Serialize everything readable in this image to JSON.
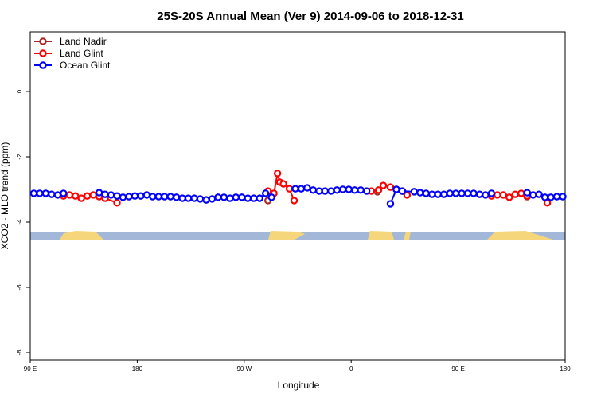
{
  "chart_data": {
    "type": "line",
    "title": "25S-20S Annual Mean (Ver 9)   2014-09-06 to 2018-12-31",
    "x_label": "Longitude",
    "y_label": "XCO2 - MLO trend (ppm)",
    "xlim": [
      90,
      540
    ],
    "ylim": [
      -8.22,
      1.83
    ],
    "xticks": [
      {
        "value": 90,
        "label": "90 E"
      },
      180,
      {
        "value": 270,
        "label": "90 W"
      },
      {
        "value": 360,
        "label": "0"
      },
      {
        "value": 450,
        "label": "90 E"
      },
      {
        "value": 540,
        "label": "180"
      }
    ],
    "yticks": [
      0,
      -2,
      -4,
      -6,
      -8
    ],
    "legend": "top-left",
    "series": [
      {
        "name": "Land Nadir",
        "color": "#a52a2a",
        "x": [
          117,
          290,
          382,
          508
        ],
        "values": [
          -3.17,
          -3.34,
          -3.07,
          -3.22
        ]
      },
      {
        "name": "Land Glint",
        "color": "#ff0000",
        "x": [
          118,
          123,
          128,
          133,
          138,
          143,
          148,
          153,
          163,
          290,
          295,
          298,
          300,
          303,
          308,
          312,
          377,
          383,
          387,
          393,
          398,
          403,
          407,
          478,
          483,
          488,
          493,
          498,
          503,
          508,
          525
        ],
        "values": [
          -3.2,
          -3.17,
          -3.2,
          -3.27,
          -3.2,
          -3.17,
          -3.22,
          -3.27,
          -3.41,
          -3.05,
          -3.12,
          -2.51,
          -2.78,
          -2.83,
          -2.98,
          -3.34,
          -3.05,
          -3.02,
          -2.88,
          -2.93,
          -3.0,
          -3.05,
          -3.17,
          -3.2,
          -3.17,
          -3.17,
          -3.24,
          -3.15,
          -3.12,
          -3.2,
          -3.41
        ]
      },
      {
        "name": "Ocean Glint",
        "color": "#0000ff",
        "x": [
          93,
          98,
          103,
          108,
          113,
          118,
          148,
          153,
          158,
          163,
          168,
          173,
          178,
          183,
          188,
          193,
          198,
          203,
          208,
          213,
          218,
          223,
          228,
          233,
          238,
          243,
          248,
          253,
          258,
          263,
          268,
          273,
          278,
          283,
          288,
          293,
          313,
          318,
          323,
          328,
          333,
          338,
          343,
          348,
          353,
          358,
          363,
          368,
          373,
          393,
          398,
          403,
          413,
          418,
          423,
          428,
          433,
          438,
          443,
          448,
          453,
          458,
          463,
          468,
          473,
          478,
          508,
          513,
          518,
          523,
          528,
          533,
          538
        ],
        "values": [
          -3.12,
          -3.12,
          -3.12,
          -3.15,
          -3.17,
          -3.12,
          -3.1,
          -3.15,
          -3.17,
          -3.2,
          -3.24,
          -3.22,
          -3.2,
          -3.2,
          -3.17,
          -3.22,
          -3.22,
          -3.22,
          -3.22,
          -3.24,
          -3.27,
          -3.27,
          -3.27,
          -3.29,
          -3.32,
          -3.29,
          -3.24,
          -3.24,
          -3.27,
          -3.24,
          -3.24,
          -3.27,
          -3.27,
          -3.27,
          -3.12,
          -3.24,
          -2.98,
          -2.98,
          -2.95,
          -3.02,
          -3.05,
          -3.05,
          -3.05,
          -3.02,
          -3.0,
          -3.0,
          -3.02,
          -3.02,
          -3.05,
          -3.44,
          -3.0,
          -3.05,
          -3.07,
          -3.1,
          -3.12,
          -3.15,
          -3.15,
          -3.15,
          -3.12,
          -3.12,
          -3.12,
          -3.12,
          -3.12,
          -3.15,
          -3.17,
          -3.12,
          -3.1,
          -3.17,
          -3.15,
          -3.24,
          -3.24,
          -3.22,
          -3.22
        ]
      }
    ]
  }
}
